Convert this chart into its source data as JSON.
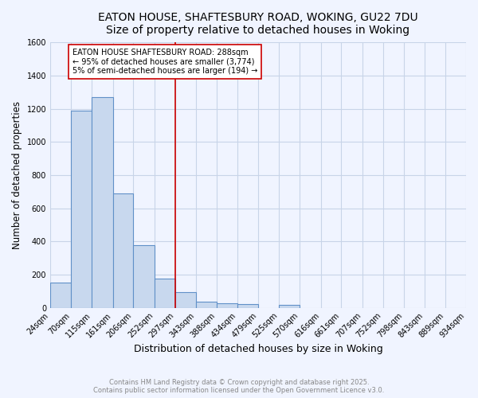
{
  "title_line1": "EATON HOUSE, SHAFTESBURY ROAD, WOKING, GU22 7DU",
  "title_line2": "Size of property relative to detached houses in Woking",
  "xlabel": "Distribution of detached houses by size in Woking",
  "ylabel": "Number of detached properties",
  "bin_edges": [
    24,
    70,
    115,
    161,
    206,
    252,
    297,
    343,
    388,
    434,
    479,
    525,
    570,
    616,
    661,
    707,
    752,
    798,
    843,
    889,
    934
  ],
  "bar_heights": [
    150,
    1190,
    1270,
    690,
    375,
    175,
    95,
    35,
    25,
    20,
    0,
    15,
    0,
    0,
    0,
    0,
    0,
    0,
    0,
    0
  ],
  "bar_color": "#c8d8ee",
  "bar_edge_color": "#6090c8",
  "vline_x": 297,
  "vline_color": "#cc0000",
  "annotation_text": "EATON HOUSE SHAFTESBURY ROAD: 288sqm\n← 95% of detached houses are smaller (3,774)\n5% of semi-detached houses are larger (194) →",
  "annotation_box_color": "#cc0000",
  "annotation_text_color": "#000000",
  "annotation_bg_color": "#ffffff",
  "ylim": [
    0,
    1600
  ],
  "yticks": [
    0,
    200,
    400,
    600,
    800,
    1000,
    1200,
    1400,
    1600
  ],
  "bg_color": "#f0f4ff",
  "grid_color": "#c8d4e8",
  "footer_line1": "Contains HM Land Registry data © Crown copyright and database right 2025.",
  "footer_line2": "Contains public sector information licensed under the Open Government Licence v3.0.",
  "footer_color": "#888888",
  "title_fontsize": 10,
  "subtitle_fontsize": 9.5,
  "ylabel_fontsize": 8.5,
  "xlabel_fontsize": 9,
  "tick_fontsize": 7,
  "annotation_fontsize": 7,
  "footer_fontsize": 6
}
